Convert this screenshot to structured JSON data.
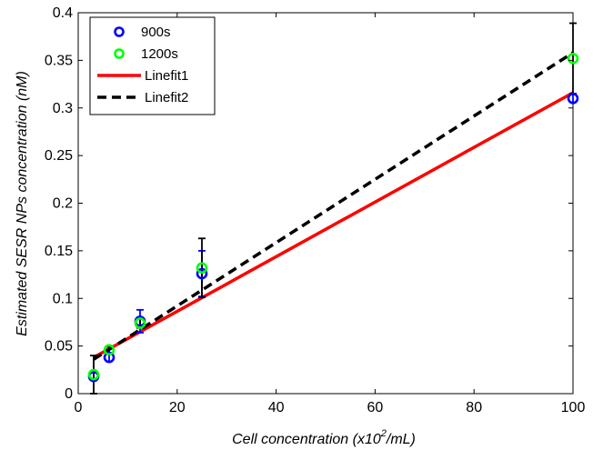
{
  "chart_data": {
    "type": "scatter",
    "xlabel_main": "Cell concentration (x10",
    "xlabel_sup": "2",
    "xlabel_tail": "/mL)",
    "ylabel": "Estimated SESR NPs concentration (nM)",
    "xlim": [
      0,
      100
    ],
    "ylim": [
      0,
      0.4
    ],
    "x_ticks": [
      0,
      20,
      40,
      60,
      80,
      100
    ],
    "y_ticks": [
      0,
      0.05,
      0.1,
      0.15,
      0.2,
      0.25,
      0.3,
      0.35,
      0.4
    ],
    "x_tick_labels": [
      "0",
      "20",
      "40",
      "60",
      "80",
      "100"
    ],
    "y_tick_labels": [
      "0",
      "0.05",
      "0.1",
      "0.15",
      "0.2",
      "0.25",
      "0.3",
      "0.35",
      "0.4"
    ],
    "grid": false,
    "legend_position": "top-left",
    "series": [
      {
        "name": "900s",
        "kind": "points",
        "color": "#0000ff",
        "x": [
          3.125,
          6.25,
          12.5,
          25,
          100
        ],
        "y": [
          0.018,
          0.038,
          0.076,
          0.126,
          0.31
        ],
        "err": [
          0.004,
          0.004,
          0.012,
          0.024,
          0.004
        ]
      },
      {
        "name": "1200s",
        "kind": "points",
        "color": "#00ff00",
        "x": [
          3.125,
          6.25,
          12.5,
          25,
          100
        ],
        "y": [
          0.02,
          0.046,
          0.074,
          0.132,
          0.352
        ],
        "err": [
          0.02,
          0.003,
          0.005,
          0.031,
          0.037
        ]
      },
      {
        "name": "Linefit1",
        "kind": "line",
        "color": "#ff0000",
        "style": "solid",
        "x": [
          3.125,
          100
        ],
        "y": [
          0.038,
          0.316
        ]
      },
      {
        "name": "Linefit2",
        "kind": "line",
        "color": "#000000",
        "style": "dashed",
        "x": [
          3.125,
          100
        ],
        "y": [
          0.036,
          0.358
        ]
      }
    ]
  }
}
